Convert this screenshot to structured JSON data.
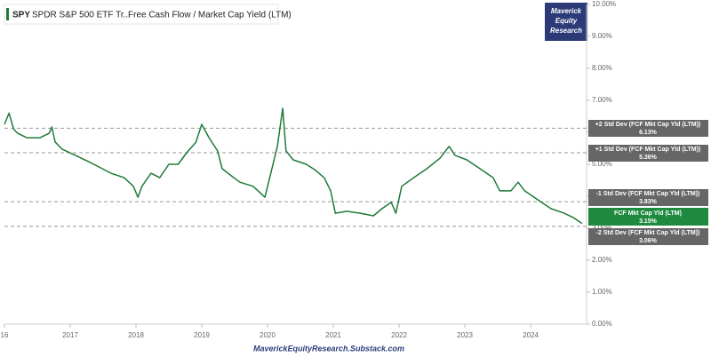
{
  "chart_data": {
    "type": "line",
    "ticker": "SPY",
    "fund": "SPDR S&P 500 ETF Tr...",
    "title": "Free Cash Flow / Market Cap Yield (LTM)",
    "logo": [
      "Maverick",
      "Equity",
      "Research"
    ],
    "source": "MaverickEquityResearch.Substack.com",
    "x": [
      2016.0,
      2016.07,
      2016.14,
      2016.2,
      2016.34,
      2016.54,
      2016.68,
      2016.72,
      2016.77,
      2016.88,
      2017.08,
      2017.28,
      2017.49,
      2017.62,
      2017.82,
      2017.96,
      2018.03,
      2018.09,
      2018.23,
      2018.36,
      2018.5,
      2018.64,
      2018.77,
      2018.91,
      2019.0,
      2019.11,
      2019.24,
      2019.31,
      2019.45,
      2019.58,
      2019.78,
      2019.96,
      2020.05,
      2020.15,
      2020.23,
      2020.28,
      2020.39,
      2020.59,
      2020.73,
      2020.86,
      2020.96,
      2021.03,
      2021.2,
      2021.41,
      2021.61,
      2021.74,
      2021.88,
      2021.95,
      2022.04,
      2022.22,
      2022.42,
      2022.62,
      2022.76,
      2022.85,
      2023.03,
      2023.23,
      2023.43,
      2023.53,
      2023.7,
      2023.81,
      2023.91,
      2024.11,
      2024.31,
      2024.51,
      2024.65,
      2024.78
    ],
    "series": [
      {
        "color": "#1f7a3a",
        "values": [
          6.25,
          6.6,
          6.1,
          5.97,
          5.83,
          5.83,
          5.97,
          6.17,
          5.7,
          5.47,
          5.28,
          5.08,
          4.86,
          4.72,
          4.58,
          4.31,
          3.97,
          4.31,
          4.72,
          4.58,
          5.0,
          5.0,
          5.36,
          5.69,
          6.25,
          5.83,
          5.42,
          4.86,
          4.64,
          4.44,
          4.31,
          3.97,
          4.72,
          5.56,
          6.75,
          5.42,
          5.14,
          5.0,
          4.81,
          4.58,
          4.17,
          3.47,
          3.53,
          3.47,
          3.39,
          3.61,
          3.81,
          3.47,
          4.31,
          4.58,
          4.86,
          5.19,
          5.56,
          5.28,
          5.14,
          4.86,
          4.58,
          4.17,
          4.17,
          4.44,
          4.17,
          3.89,
          3.61,
          3.47,
          3.33,
          3.15
        ]
      }
    ],
    "xlim": [
      2016,
      2024.85
    ],
    "xticks": [
      {
        "value": 2016,
        "label": "16"
      },
      2017,
      2018,
      2019,
      2020,
      2021,
      2022,
      2023,
      2024
    ],
    "ylim": [
      0,
      10
    ],
    "yticks": [
      {
        "value": 0,
        "label": "0.00%"
      },
      {
        "value": 1,
        "label": "1.00%"
      },
      {
        "value": 2,
        "label": "2.00%"
      },
      {
        "value": 3,
        "label": "3.00%"
      },
      {
        "value": 4,
        "label": "4.00%"
      },
      {
        "value": 5,
        "label": "5.00%"
      },
      {
        "value": 6,
        "label": "6.00%"
      },
      {
        "value": 7,
        "label": "7.00%"
      },
      {
        "value": 8,
        "label": "8.00%"
      },
      {
        "value": 9,
        "label": "9.00%"
      },
      {
        "value": 10,
        "label": "10.00%"
      }
    ],
    "reference_lines": [
      {
        "label": "+2 Std Dev (FCF Mkt Cap Yld (LTM))",
        "value": 6.13,
        "value_label": "6.13%"
      },
      {
        "label": "+1 Std Dev (FCF Mkt Cap Yld (LTM))",
        "value": 5.36,
        "value_label": "5.36%"
      },
      {
        "label": "-1 Std Dev (FCF Mkt Cap Yld (LTM))",
        "value": 3.83,
        "value_label": "3.83%"
      },
      {
        "label": "-2 Std Dev (FCF Mkt Cap Yld (LTM))",
        "value": 3.06,
        "value_label": "3.06%"
      }
    ],
    "current": {
      "label": "FCF Mkt Cap Yld (LTM)",
      "value": 3.15,
      "value_label": "3.15%",
      "color": "#1f8a3f"
    }
  }
}
